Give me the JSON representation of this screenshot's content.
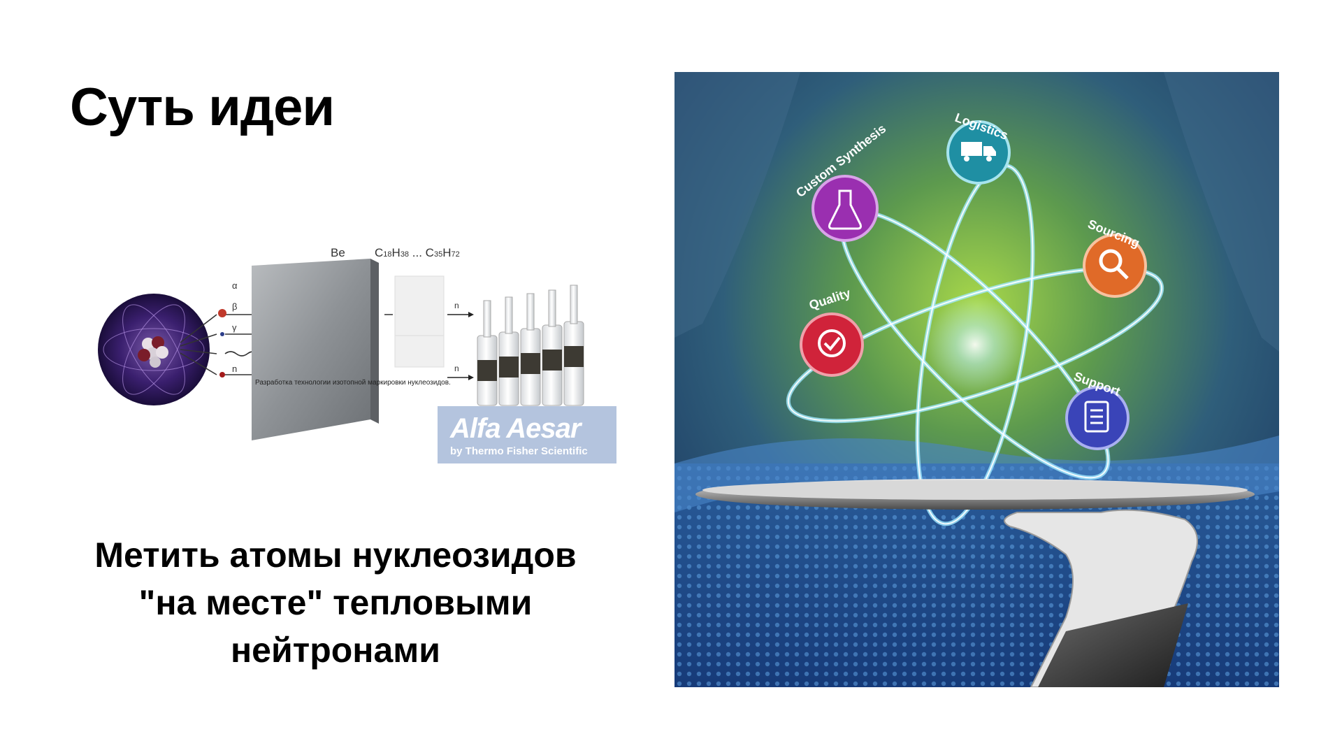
{
  "slide": {
    "title": "Суть идеи",
    "caption_lines": [
      "Метить атомы нуклеозидов",
      "\"на месте\" тепловыми",
      "нейтронами"
    ]
  },
  "diagram": {
    "plate_label": "Be",
    "formula": {
      "c1": "C",
      "n1": "18",
      "h1": "H",
      "n2": "38",
      "sep": " ... C",
      "n3": "35",
      "h2": "H",
      "n4": "72"
    },
    "radiation": [
      "α",
      "β",
      "γ",
      "n"
    ],
    "output_label": "n",
    "note": "Разработка технологии изотопной маркировки нуклеозидов.",
    "logo_brand": "Alfa Aesar",
    "logo_sub": "by Thermo Fisher Scientific"
  },
  "hero": {
    "services": [
      {
        "label": "Custom Synthesis",
        "icon": "flask-icon",
        "color": "#9a2fb0"
      },
      {
        "label": "Logistics",
        "icon": "truck-icon",
        "color": "#1f8fa3"
      },
      {
        "label": "Sourcing",
        "icon": "magnifier-icon",
        "color": "#e06a28"
      },
      {
        "label": "Quality",
        "icon": "check-badge-icon",
        "color": "#d0233a"
      },
      {
        "label": "Support",
        "icon": "clipboard-icon",
        "color": "#3a44b8"
      }
    ]
  }
}
